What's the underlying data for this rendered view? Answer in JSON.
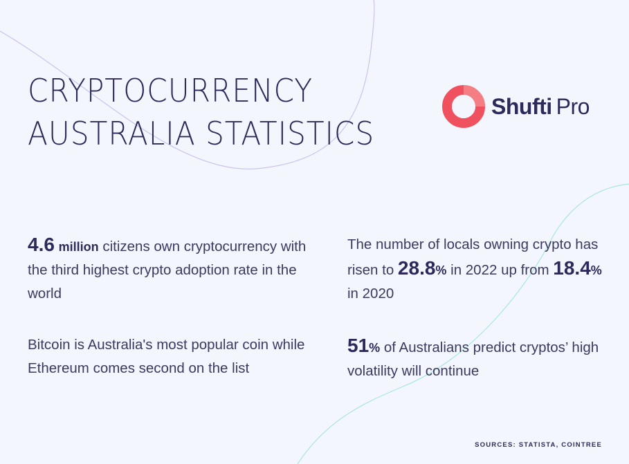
{
  "title": {
    "line1": "CRYPTOCURRENCY",
    "line2": "AUSTRALIA STATISTICS"
  },
  "logo": {
    "text_bold": "Shufti",
    "text_light": "Pro",
    "icon": "shufti-ring-icon",
    "colors": {
      "ring_outer": "#f0515f",
      "ring_inner": "#f37579"
    }
  },
  "stats": {
    "s1": {
      "number": "4.6",
      "unit": "million",
      "text": " citizens own cryptocurrency with the third highest crypto adoption rate in the world"
    },
    "s2": {
      "text": "Bitcoin is Australia's most popular coin while Ethereum comes second on the list"
    },
    "s3": {
      "text_a": "The number of locals owning crypto has risen to ",
      "num_a": "28.8",
      "unit_a": "%",
      "text_b": " in 2022 up from ",
      "num_b": "18.4",
      "unit_b": "%",
      "text_c": " in 2020"
    },
    "s4": {
      "number": "51",
      "unit": "%",
      "text": " of Australians predict cryptos’ high volatility will continue"
    }
  },
  "sources": "SOURCES: STATISTA, COINTREE",
  "colors": {
    "background": "#f4f6fd",
    "text": "#2b2a5a",
    "accent_line_purple": "#c9c3ef",
    "accent_line_teal": "#9be0dc"
  }
}
